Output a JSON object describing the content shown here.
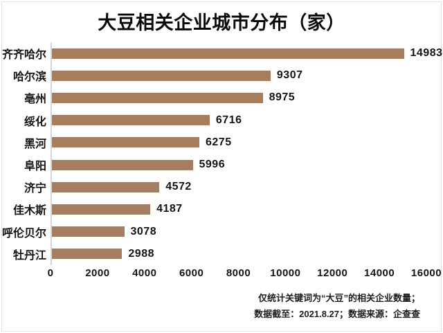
{
  "title": "大豆相关企业城市分布（家）",
  "chart_data": {
    "type": "bar",
    "orientation": "horizontal",
    "title": "大豆相关企业城市分布（家）",
    "categories": [
      "齐齐哈尔",
      "哈尔滨",
      "亳州",
      "绥化",
      "黑河",
      "阜阳",
      "济宁",
      "佳木斯",
      "呼伦贝尔",
      "牡丹江"
    ],
    "values": [
      14983,
      9307,
      8975,
      6716,
      6275,
      5996,
      4572,
      4187,
      3078,
      2988
    ],
    "xlabel": "",
    "ylabel": "",
    "xlim": [
      0,
      16000
    ],
    "xticks": [
      0,
      2000,
      4000,
      6000,
      8000,
      10000,
      12000,
      14000,
      16000
    ],
    "grid": false,
    "legend": false,
    "value_labels": true
  },
  "footer": {
    "line1": "仅统计关键词为“大豆”的相关企业数量；",
    "line2": "数据截至：2021.8.27；数据来源：企查查"
  },
  "colors": {
    "bar": "#a67d5e",
    "axis_line": "#d8d6d4",
    "text": "#141414",
    "background": "#ffffff"
  }
}
